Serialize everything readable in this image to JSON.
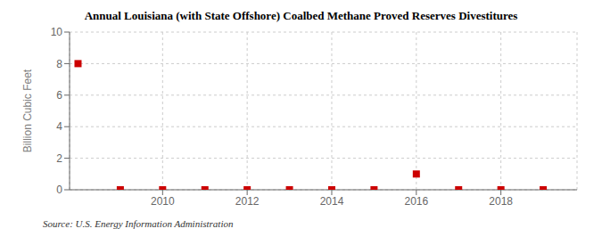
{
  "chart_data": {
    "type": "scatter",
    "title": "Annual Louisiana (with State Offshore) Coalbed Methane Proved Reserves Divestitures",
    "y_label": "Billion Cubic Feet",
    "annotations": [
      "Source: U.S. Energy Information Administration"
    ],
    "x": [
      2008,
      2009,
      2010,
      2011,
      2012,
      2013,
      2014,
      2015,
      2016,
      2017,
      2018,
      2019
    ],
    "values": [
      8.0,
      0.0,
      0.0,
      0.0,
      0.0,
      0.0,
      0.0,
      0.0,
      1.0,
      0.0,
      0.0,
      0.0
    ],
    "color": "#cc0000",
    "marker": "square",
    "xlim": [
      2007.8,
      2019.8
    ],
    "xticks": [
      2010,
      2012,
      2014,
      2016,
      2018
    ],
    "ylim": [
      0,
      10
    ],
    "yticks": [
      0,
      2,
      4,
      6,
      8,
      10
    ],
    "grid": true
  }
}
